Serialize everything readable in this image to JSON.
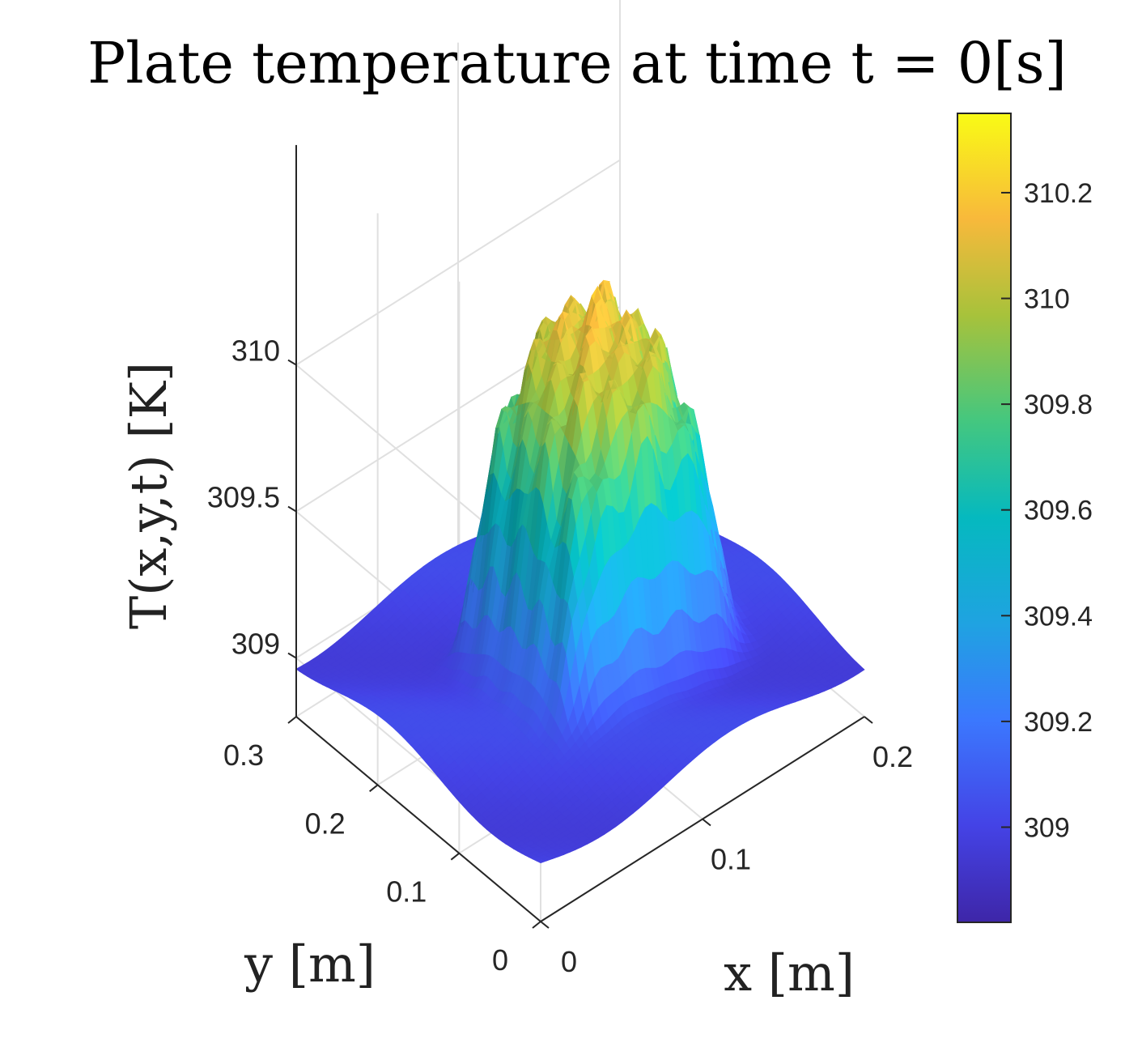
{
  "chart_data": {
    "type": "surface",
    "title": "Plate temperature at time t = 0[s]",
    "xlabel": "x [m]",
    "ylabel": "y [m]",
    "zlabel": "T(x,y,t) [K]",
    "x_ticks": [
      {
        "value": 0,
        "label": "0"
      },
      {
        "value": 0.1,
        "label": "0.1"
      },
      {
        "value": 0.2,
        "label": "0.2"
      }
    ],
    "y_ticks": [
      {
        "value": 0,
        "label": "0"
      },
      {
        "value": 0.1,
        "label": "0.1"
      },
      {
        "value": 0.2,
        "label": "0.2"
      },
      {
        "value": 0.3,
        "label": "0.3"
      }
    ],
    "z_ticks": [
      {
        "value": 309,
        "label": "309"
      },
      {
        "value": 309.5,
        "label": "309.5"
      },
      {
        "value": 310,
        "label": "310"
      }
    ],
    "xlim": [
      0,
      0.2
    ],
    "ylim": [
      0,
      0.3
    ],
    "zlim": [
      308.8,
      310.4
    ],
    "grid": true,
    "colormap": "parula",
    "colorbar": {
      "range": [
        308.82,
        310.35
      ],
      "ticks": [
        {
          "value": 309,
          "label": "309"
        },
        {
          "value": 309.2,
          "label": "309.2"
        },
        {
          "value": 309.4,
          "label": "309.4"
        },
        {
          "value": 309.6,
          "label": "309.6"
        },
        {
          "value": 309.8,
          "label": "309.8"
        },
        {
          "value": 310,
          "label": "310"
        },
        {
          "value": 310.2,
          "label": "310.2"
        }
      ]
    },
    "surface": {
      "base_temperature": 309,
      "peak_temperature": 310.35,
      "plateau_x_range": [
        0.06,
        0.16
      ],
      "plateau_y_range": [
        0.08,
        0.22
      ]
    }
  }
}
